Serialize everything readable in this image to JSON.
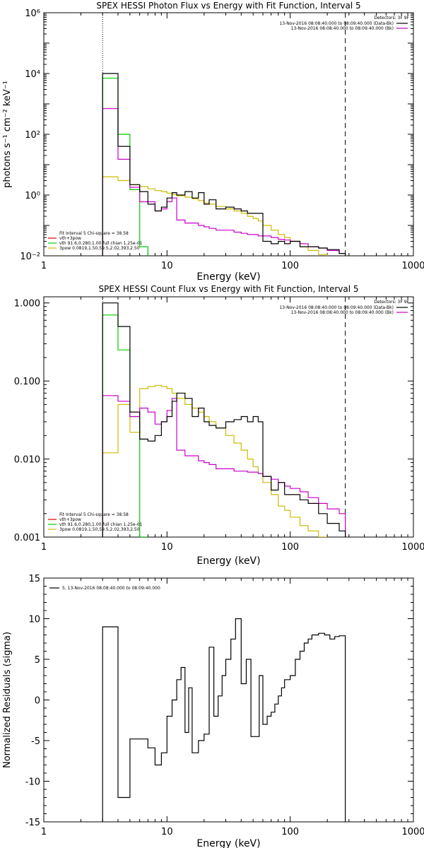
{
  "chart_data": [
    {
      "type": "line",
      "title": "SPEX HESSI Photon Flux vs Energy with Fit Function, Interval 5",
      "xlabel": "Energy (keV)",
      "ylabel": "photons s⁻¹ cm⁻² keV⁻¹",
      "xscale": "log",
      "yscale": "log",
      "xlim": [
        1,
        1000
      ],
      "ylim": [
        0.01,
        1000000
      ],
      "xticks": [
        1,
        10,
        100,
        1000
      ],
      "xtick_labels": [
        "1",
        "10",
        "100",
        "1000"
      ],
      "yticks": [
        0.01,
        1,
        100,
        10000,
        1000000
      ],
      "ytick_labels": [
        "10⁻²",
        "10⁰",
        "10²",
        "10⁴",
        "10⁶"
      ],
      "grid": false,
      "legend_position": "bottom-left",
      "top_right_header": "Detectors: 3F 9F",
      "top_right_legend": [
        {
          "label": "13-Nov-2016 08:08:40.000 to 08:09:40.000 (Data-Bk)",
          "color": "#000000"
        },
        {
          "label": "13-Nov-2016 08:08:40.000 to 08:09:40.000 (Bk)",
          "color": "#cc00cc"
        }
      ],
      "bottom_left_legend": [
        {
          "label": "Fit Interval 5   Chi-square = 38.58",
          "color": null
        },
        {
          "label": "vth+3pow",
          "color": "#dd0000"
        },
        {
          "label": "vth 91.6,0.280,1.00  full chian 1.25e-01",
          "color": "#00cc00"
        },
        {
          "label": "3pow 0.0819,1.50,59.5,2.02,393,2.50",
          "color": "#ccbb00"
        }
      ],
      "vlines": [
        {
          "x": 3,
          "style": "dotted",
          "color": "#000000"
        },
        {
          "x": 280,
          "style": "dashed",
          "color": "#000000"
        }
      ],
      "series": [
        {
          "name": "",
          "color": "#000000",
          "edges": [
            3,
            4,
            5,
            6,
            7,
            8,
            9,
            10,
            11,
            12,
            14,
            16,
            18,
            20,
            22,
            25,
            30,
            35,
            40,
            45,
            50,
            55,
            60,
            70,
            80,
            90,
            100,
            120,
            140,
            170,
            200,
            250,
            280
          ],
          "values": [
            10000,
            40,
            2.2,
            1.3,
            0.5,
            0.3,
            0.4,
            0.8,
            1.2,
            1.0,
            1.3,
            0.8,
            1.2,
            0.5,
            0.7,
            0.35,
            0.4,
            0.35,
            0.3,
            0.25,
            0.25,
            0.25,
            0.03,
            0.025,
            0.03,
            0.025,
            0.03,
            0.02,
            0.02,
            0.018,
            0.016,
            0.012
          ]
        },
        {
          "name": "",
          "color": "#cc00cc",
          "edges": [
            3,
            4,
            5,
            6,
            7,
            8,
            9,
            10,
            11,
            12,
            14,
            16,
            18,
            20,
            22,
            25,
            30,
            35,
            40,
            45,
            50,
            55,
            60,
            70,
            80,
            90,
            100,
            120,
            140,
            170,
            200,
            250,
            280
          ],
          "values": [
            700,
            15,
            1.8,
            0.6,
            0.6,
            0.3,
            0.35,
            0.6,
            0.8,
            0.15,
            0.12,
            0.12,
            0.1,
            0.09,
            0.08,
            0.07,
            0.07,
            0.06,
            0.055,
            0.05,
            0.05,
            0.045,
            0.045,
            0.04,
            0.035,
            0.033,
            0.03,
            0.025,
            0.02,
            0.018,
            0.015,
            0.012
          ]
        },
        {
          "name": "",
          "color": "#00cc00",
          "edges": [
            3,
            4,
            5,
            6,
            7
          ],
          "values": [
            7000,
            100,
            1.5,
            0.02
          ]
        },
        {
          "name": "",
          "color": "#ccbb00",
          "edges": [
            3,
            4,
            5,
            6,
            7,
            8,
            9,
            10,
            11,
            12,
            14,
            16,
            18,
            20,
            22,
            25,
            30,
            35,
            40,
            45,
            50,
            55,
            60,
            70,
            80,
            90,
            100,
            120,
            140,
            170,
            200
          ],
          "values": [
            4,
            3,
            2.2,
            1.9,
            1.6,
            1.4,
            1.3,
            1.15,
            1.05,
            0.95,
            0.85,
            0.75,
            0.65,
            0.55,
            0.5,
            0.42,
            0.35,
            0.3,
            0.25,
            0.2,
            0.17,
            0.14,
            0.1,
            0.07,
            0.05,
            0.04,
            0.03,
            0.02,
            0.015,
            0.011
          ]
        }
      ]
    },
    {
      "type": "line",
      "title": "SPEX HESSI Count Flux vs Energy with Fit Function, Interval 5",
      "xlabel": "Energy (keV)",
      "ylabel": "",
      "xscale": "log",
      "yscale": "log",
      "xlim": [
        1,
        1000
      ],
      "ylim": [
        0.001,
        1.2
      ],
      "xticks": [
        1,
        10,
        100,
        1000
      ],
      "xtick_labels": [
        "1",
        "10",
        "100",
        "1000"
      ],
      "yticks": [
        0.001,
        0.01,
        0.1,
        1
      ],
      "ytick_labels": [
        "0.001",
        "0.010",
        "0.100",
        "1.000"
      ],
      "grid": false,
      "legend_position": "bottom-left",
      "top_right_header": "Detectors: 3F 9F",
      "top_right_legend": [
        {
          "label": "13-Nov-2016 08:08:40.000 to 08:09:40.000 (Data-Bk)",
          "color": "#000000"
        },
        {
          "label": "13-Nov-2016 08:08:40.000 to 08:09:40.000 (Bk)",
          "color": "#cc00cc"
        }
      ],
      "bottom_left_legend": [
        {
          "label": "Fit Interval 5   Chi-square = 38.58",
          "color": null
        },
        {
          "label": "vth+3pow",
          "color": "#dd0000"
        },
        {
          "label": "vth 91.6,0.280,1.00  full chian 1.25e-01",
          "color": "#00cc00"
        },
        {
          "label": "3pow 0.0819,1.50,59.5,2.02,393,2.50",
          "color": "#ccbb00"
        }
      ],
      "vlines": [
        {
          "x": 3,
          "style": "dotted",
          "color": "#000000"
        },
        {
          "x": 280,
          "style": "dashed",
          "color": "#000000"
        }
      ],
      "series": [
        {
          "name": "",
          "color": "#000000",
          "edges": [
            3,
            4,
            5,
            6,
            7,
            8,
            9,
            10,
            11,
            12,
            14,
            16,
            18,
            20,
            22,
            25,
            30,
            35,
            40,
            45,
            50,
            55,
            60,
            70,
            80,
            90,
            100,
            120,
            140,
            170,
            200,
            250,
            280
          ],
          "values": [
            1.0,
            0.5,
            0.04,
            0.018,
            0.017,
            0.02,
            0.03,
            0.035,
            0.055,
            0.07,
            0.06,
            0.035,
            0.045,
            0.03,
            0.027,
            0.025,
            0.03,
            0.032,
            0.035,
            0.03,
            0.035,
            0.03,
            0.006,
            0.004,
            0.005,
            0.0035,
            0.0035,
            0.003,
            0.0027,
            0.002,
            0.0015,
            0.0012
          ]
        },
        {
          "name": "",
          "color": "#cc00cc",
          "edges": [
            3,
            4,
            5,
            6,
            7,
            8,
            9,
            10,
            11,
            12,
            14,
            16,
            18,
            20,
            22,
            25,
            30,
            35,
            40,
            45,
            50,
            55,
            60,
            70,
            80,
            90,
            100,
            120,
            140,
            170,
            200,
            250,
            280
          ],
          "values": [
            0.065,
            0.055,
            0.035,
            0.045,
            0.04,
            0.028,
            0.03,
            0.042,
            0.06,
            0.013,
            0.011,
            0.011,
            0.0095,
            0.009,
            0.0085,
            0.0075,
            0.0075,
            0.007,
            0.007,
            0.0068,
            0.0068,
            0.0065,
            0.006,
            0.0055,
            0.005,
            0.0045,
            0.0042,
            0.0038,
            0.0032,
            0.0027,
            0.0023,
            0.002
          ]
        },
        {
          "name": "",
          "color": "#00cc00",
          "edges": [
            3,
            4,
            5,
            6,
            7
          ],
          "values": [
            0.7,
            0.25,
            0.035,
            0.001
          ]
        },
        {
          "name": "",
          "color": "#ccbb00",
          "edges": [
            3,
            4,
            5,
            6,
            7,
            8,
            9,
            10,
            11,
            12,
            14,
            16,
            18,
            20,
            22,
            25,
            30,
            35,
            40,
            45,
            50,
            55,
            60,
            70,
            80,
            90,
            100,
            120,
            140,
            170,
            200
          ],
          "values": [
            0.012,
            0.05,
            0.022,
            0.08,
            0.085,
            0.088,
            0.085,
            0.08,
            0.07,
            0.06,
            0.05,
            0.045,
            0.04,
            0.035,
            0.03,
            0.025,
            0.02,
            0.016,
            0.013,
            0.01,
            0.008,
            0.0065,
            0.005,
            0.0035,
            0.0025,
            0.0022,
            0.0018,
            0.0014,
            0.0012,
            0.001
          ]
        }
      ]
    },
    {
      "type": "line",
      "title": "",
      "xlabel": "Energy (keV)",
      "ylabel": "Normalized Residuals (sigma)",
      "xscale": "log",
      "yscale": "linear",
      "xlim": [
        1,
        1000
      ],
      "ylim": [
        -15,
        15
      ],
      "xticks": [
        1,
        10,
        100,
        1000
      ],
      "xtick_labels": [
        "1",
        "10",
        "100",
        "1000"
      ],
      "yticks": [
        -15,
        -10,
        -5,
        0,
        5,
        10,
        15
      ],
      "ytick_labels": [
        "-15",
        "-10",
        "-5",
        "0",
        "5",
        "10",
        "15"
      ],
      "grid": false,
      "legend_position": "top-left",
      "top_left_legend": [
        {
          "label": "5, 13-Nov-2016 08:08:40.000 to 08:09:40.000",
          "color": "#000000"
        }
      ],
      "series": [
        {
          "name": "",
          "color": "#000000",
          "edges": [
            3,
            4,
            5,
            6,
            7,
            8,
            9,
            10,
            11,
            12,
            13,
            14,
            15,
            16,
            18,
            20,
            22,
            24,
            26,
            28,
            30,
            33,
            36,
            40,
            44,
            48,
            52,
            56,
            60,
            65,
            70,
            75,
            80,
            85,
            90,
            100,
            110,
            120,
            130,
            140,
            150,
            170,
            190,
            210,
            230,
            250,
            280
          ],
          "values": [
            9,
            -12,
            -4.8,
            -4.8,
            -5.9,
            -8,
            -6.5,
            -2,
            0,
            2.5,
            4,
            -4,
            1.5,
            -6.5,
            -5,
            -4.2,
            6.5,
            -2,
            0.5,
            3,
            5,
            7.5,
            10,
            2,
            5,
            -4.5,
            -4.5,
            3,
            -3,
            -2,
            -1.5,
            -0.5,
            0.5,
            1.5,
            2.5,
            3,
            5,
            6,
            7,
            7.5,
            8,
            8.2,
            8,
            7.5,
            7.8,
            7.9
          ]
        }
      ]
    }
  ]
}
